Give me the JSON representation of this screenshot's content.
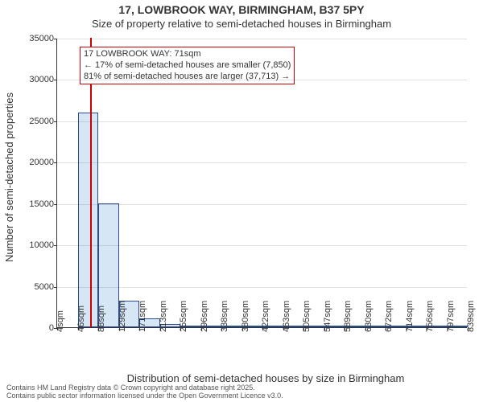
{
  "title1": "17, LOWBROOK WAY, BIRMINGHAM, B37 5PY",
  "title2": "Size of property relative to semi-detached houses in Birmingham",
  "ylabel": "Number of semi-detached properties",
  "xlabel": "Distribution of semi-detached houses by size in Birmingham",
  "footer1": "Contains HM Land Registry data © Crown copyright and database right 2025.",
  "footer2": "Contains public sector information licensed under the Open Government Licence v3.0.",
  "chart": {
    "type": "histogram",
    "ylim": [
      0,
      35000
    ],
    "ytick_step": 5000,
    "x_tick_labels": [
      "4sqm",
      "46sqm",
      "88sqm",
      "129sqm",
      "171sqm",
      "213sqm",
      "255sqm",
      "296sqm",
      "338sqm",
      "380sqm",
      "422sqm",
      "463sqm",
      "505sqm",
      "547sqm",
      "589sqm",
      "630sqm",
      "672sqm",
      "714sqm",
      "756sqm",
      "797sqm",
      "839sqm"
    ],
    "values": [
      0,
      26000,
      15000,
      3200,
      1100,
      400,
      200,
      120,
      80,
      60,
      50,
      40,
      30,
      20,
      15,
      12,
      10,
      8,
      6,
      4
    ],
    "bar_fill": "#d6e6f5",
    "bar_stroke": "#2a4d8f",
    "background_color": "#ffffff",
    "marker_value_sqm": 71,
    "x_domain": [
      4,
      839
    ]
  },
  "annotation": {
    "line1": "17 LOWBROOK WAY: 71sqm",
    "line2": "← 17% of semi-detached houses are smaller (7,850)",
    "line3": "81% of semi-detached houses are larger (37,713) →",
    "box_color": "#cc0000"
  }
}
